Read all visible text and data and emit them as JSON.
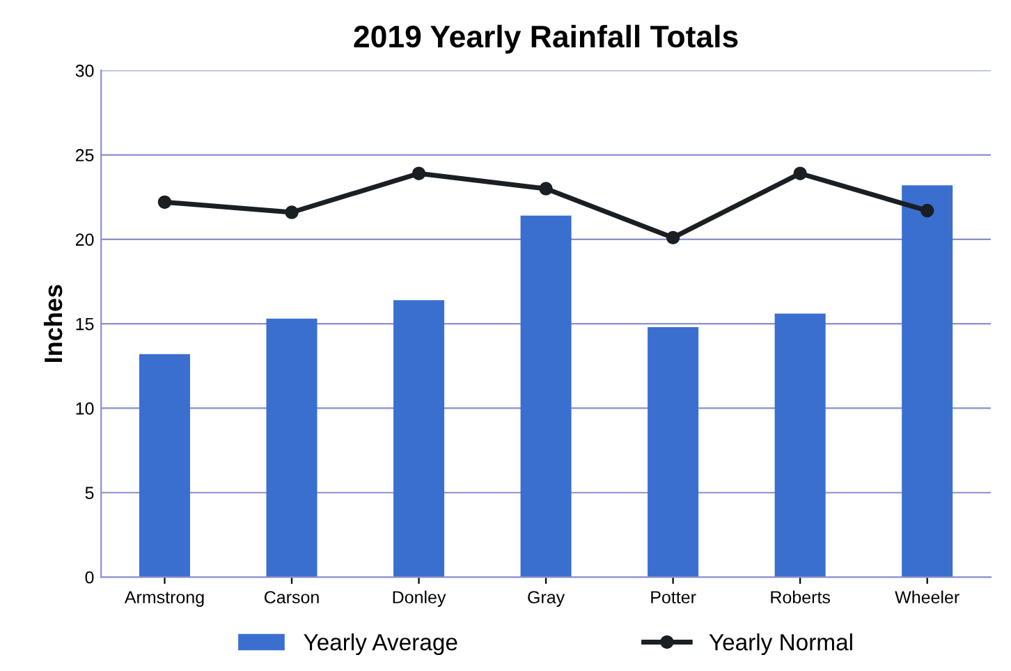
{
  "chart_data": {
    "type": "bar",
    "title": "2019 Yearly Rainfall Totals",
    "ylabel": "Inches",
    "categories": [
      "Armstrong",
      "Carson",
      "Donley",
      "Gray",
      "Potter",
      "Roberts",
      "Wheeler"
    ],
    "series": [
      {
        "name": "Yearly Average",
        "color": "#3a6fd0",
        "values": [
          13.2,
          15.3,
          16.4,
          21.4,
          14.8,
          15.6,
          23.2
        ]
      },
      {
        "name": "Yearly Normal",
        "type": "line",
        "color": "#1a1f24",
        "marker": "circle",
        "values": [
          22.2,
          21.6,
          23.9,
          23.0,
          20.1,
          23.9,
          21.7
        ]
      }
    ],
    "ylim": [
      0,
      30
    ],
    "yticks": [
      0,
      5,
      10,
      15,
      20,
      25,
      30
    ],
    "grid": "y",
    "legend": "bottom"
  }
}
